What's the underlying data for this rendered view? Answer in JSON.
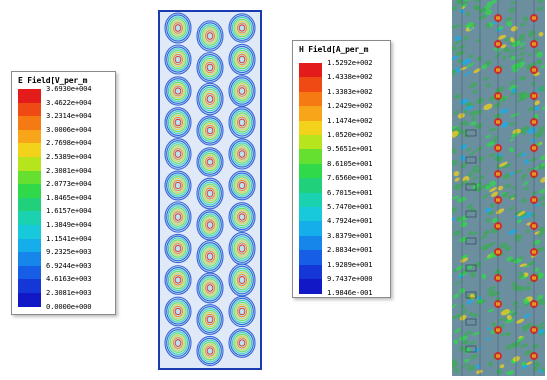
{
  "e_field_legend": {
    "title": "E Field[V_per_m",
    "labels": [
      "3.6930e+004",
      "3.4622e+004",
      "3.2314e+004",
      "3.0006e+004",
      "2.7698e+004",
      "2.5389e+004",
      "2.3081e+004",
      "2.0773e+004",
      "1.8465e+004",
      "1.6157e+004",
      "1.3849e+004",
      "1.1541e+004",
      "9.2325e+003",
      "6.9244e+003",
      "4.6163e+003",
      "2.3081e+003",
      "0.0000e+000"
    ],
    "colors": [
      "#e31b1b",
      "#f04a14",
      "#f57a14",
      "#f8a51a",
      "#f2d21a",
      "#b6e51d",
      "#66e030",
      "#2fd94a",
      "#20d07a",
      "#1ad2b0",
      "#18c9dc",
      "#16aeea",
      "#1686ea",
      "#155ee5",
      "#1537d8",
      "#1318c6"
    ]
  },
  "h_field_legend": {
    "title": "H Field[A_per_m",
    "labels": [
      "1.5292e+002",
      "1.4338e+002",
      "1.3383e+002",
      "1.2429e+002",
      "1.1474e+002",
      "1.0520e+002",
      "9.5651e+001",
      "8.6105e+001",
      "7.6560e+001",
      "6.7015e+001",
      "5.7470e+001",
      "4.7924e+001",
      "3.8379e+001",
      "2.8834e+001",
      "1.9289e+001",
      "9.7437e+000",
      "1.9846e-001"
    ],
    "colors": [
      "#e31b1b",
      "#f04a14",
      "#f57a14",
      "#f8a51a",
      "#f2d21a",
      "#b6e51d",
      "#66e030",
      "#2fd94a",
      "#20d07a",
      "#1ad2b0",
      "#18c9dc",
      "#16aeea",
      "#1686ea",
      "#155ee5",
      "#1537d8",
      "#1318c6"
    ]
  },
  "e_field_plot": {
    "structure_color": "#2a55d8",
    "background_color": "#dfe9f7"
  },
  "h_field_plot": {
    "background_color": "#6c8fa0",
    "dominant_color": "#3fa85a"
  }
}
